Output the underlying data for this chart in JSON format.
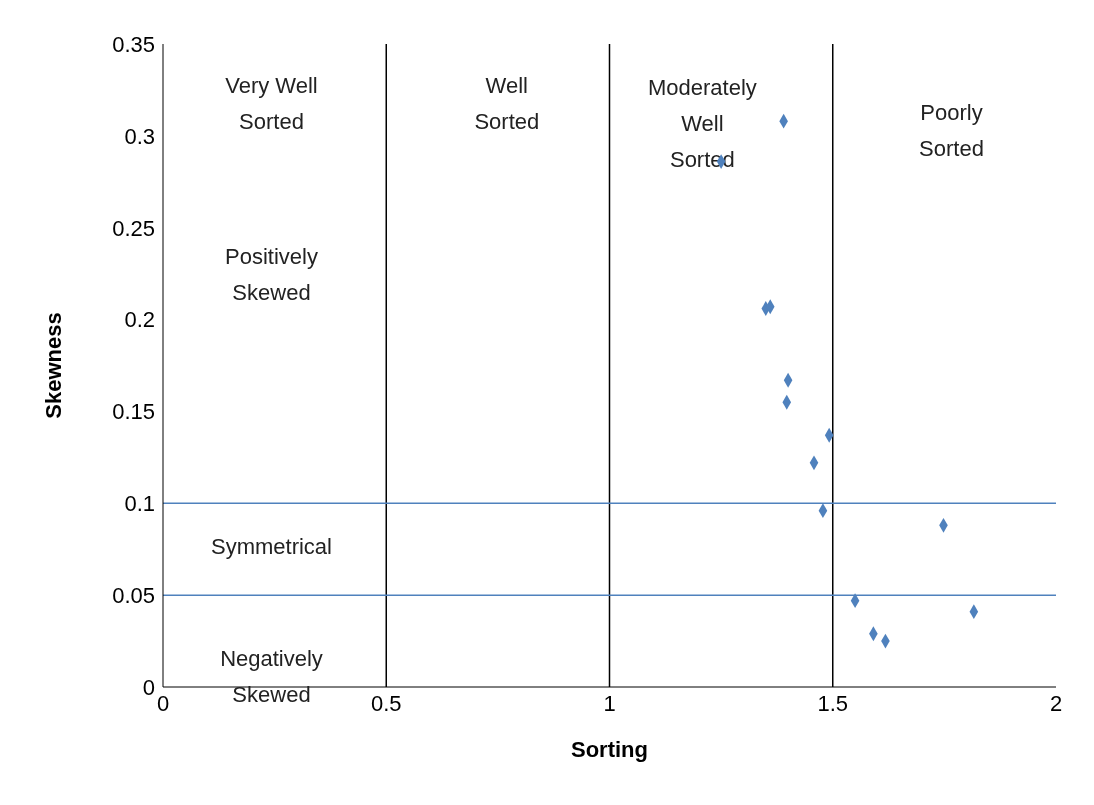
{
  "chart_data": {
    "type": "scatter",
    "xlabel": "Sorting",
    "ylabel": "Skewness",
    "xlim": [
      0,
      2
    ],
    "xticks": [
      0,
      0.5,
      1,
      1.5,
      2
    ],
    "ylim": [
      0,
      0.35
    ],
    "yticks": [
      0,
      0.05,
      0.1,
      0.15,
      0.2,
      0.25,
      0.3,
      0.35
    ],
    "grid": false,
    "legend": false,
    "marker": "diamond",
    "series": [
      {
        "color": "#4f81bd",
        "x": [
          1.25,
          1.39,
          1.35,
          1.36,
          1.4,
          1.397,
          1.492,
          1.458,
          1.478,
          1.748,
          1.55,
          1.591,
          1.618,
          1.816
        ],
        "values": [
          0.286,
          0.308,
          0.206,
          0.207,
          0.167,
          0.155,
          0.137,
          0.122,
          0.096,
          0.088,
          0.047,
          0.029,
          0.025,
          0.041
        ]
      }
    ],
    "ref_lines": [
      {
        "axis": "x",
        "value": 0.5,
        "color": "#000000"
      },
      {
        "axis": "x",
        "value": 1,
        "color": "#000000"
      },
      {
        "axis": "x",
        "value": 1.5,
        "color": "#000000"
      },
      {
        "axis": "y",
        "value": 0.1,
        "color": "#4f81bd"
      },
      {
        "axis": "y",
        "value": 0.05,
        "color": "#4f81bd"
      }
    ],
    "annotations": [
      "Very Well\nSorted",
      "Well\nSorted",
      "Moderately\nWell\nSorted",
      "Poorly\nSorted",
      "Positively\nSkewed",
      "Symmetrical",
      "Negatively\nSkewed"
    ]
  }
}
